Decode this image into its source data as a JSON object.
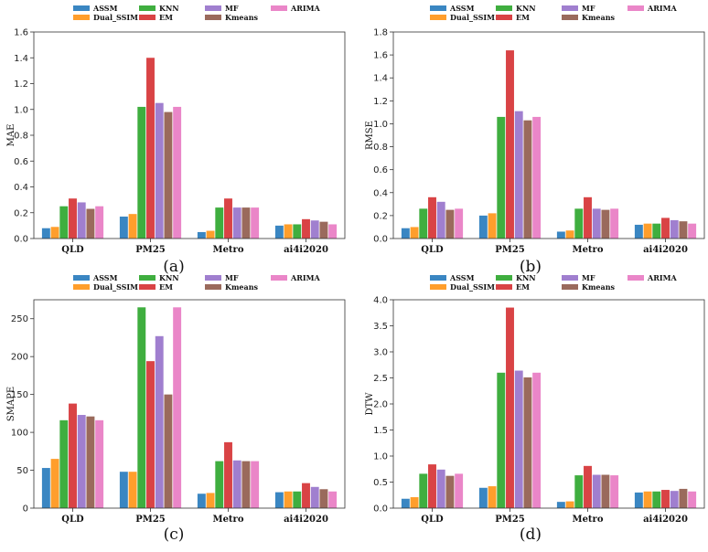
{
  "colors": {
    "ASSM": "#3a86c2",
    "Dual_SSIM": "#ff9e2c",
    "KNN": "#3fae3f",
    "EM": "#d94345",
    "MF": "#a07fcf",
    "Kmeans": "#9a6a5c",
    "ARIMA": "#ea86c8"
  },
  "legend_order": [
    "ASSM",
    "Dual_SSIM",
    "KNN",
    "EM",
    "MF",
    "Kmeans",
    "ARIMA"
  ],
  "chart_data": [
    {
      "type": "bar",
      "panel_label": "(a)",
      "title": "",
      "xlabel": "",
      "ylabel": "MAE",
      "ylim": [
        0,
        1.6
      ],
      "yticks": [
        "0.0",
        "0.2",
        "0.4",
        "0.6",
        "0.8",
        "1.0",
        "1.2",
        "1.4",
        "1.6"
      ],
      "categories": [
        "QLD",
        "PM25",
        "Metro",
        "ai4i2020"
      ],
      "legend": "top",
      "grid": false,
      "series": [
        {
          "name": "ASSM",
          "values": [
            0.08,
            0.17,
            0.05,
            0.1
          ]
        },
        {
          "name": "Dual_SSIM",
          "values": [
            0.09,
            0.19,
            0.06,
            0.11
          ]
        },
        {
          "name": "KNN",
          "values": [
            0.25,
            1.02,
            0.24,
            0.11
          ]
        },
        {
          "name": "EM",
          "values": [
            0.31,
            1.4,
            0.31,
            0.15
          ]
        },
        {
          "name": "MF",
          "values": [
            0.28,
            1.05,
            0.24,
            0.14
          ]
        },
        {
          "name": "Kmeans",
          "values": [
            0.23,
            0.98,
            0.24,
            0.13
          ]
        },
        {
          "name": "ARIMA",
          "values": [
            0.25,
            1.02,
            0.24,
            0.11
          ]
        }
      ]
    },
    {
      "type": "bar",
      "panel_label": "(b)",
      "title": "",
      "xlabel": "",
      "ylabel": "RMSE",
      "ylim": [
        0,
        1.8
      ],
      "yticks": [
        "0.0",
        "0.2",
        "0.4",
        "0.6",
        "0.8",
        "1.0",
        "1.2",
        "1.4",
        "1.6",
        "1.8"
      ],
      "categories": [
        "QLD",
        "PM25",
        "Metro",
        "ai4i2020"
      ],
      "legend": "top",
      "grid": false,
      "series": [
        {
          "name": "ASSM",
          "values": [
            0.09,
            0.2,
            0.06,
            0.12
          ]
        },
        {
          "name": "Dual_SSIM",
          "values": [
            0.1,
            0.22,
            0.07,
            0.13
          ]
        },
        {
          "name": "KNN",
          "values": [
            0.26,
            1.06,
            0.26,
            0.13
          ]
        },
        {
          "name": "EM",
          "values": [
            0.36,
            1.64,
            0.36,
            0.18
          ]
        },
        {
          "name": "MF",
          "values": [
            0.32,
            1.11,
            0.26,
            0.16
          ]
        },
        {
          "name": "Kmeans",
          "values": [
            0.25,
            1.03,
            0.25,
            0.15
          ]
        },
        {
          "name": "ARIMA",
          "values": [
            0.26,
            1.06,
            0.26,
            0.13
          ]
        }
      ]
    },
    {
      "type": "bar",
      "panel_label": "(c)",
      "title": "",
      "xlabel": "",
      "ylabel": "SMAPE",
      "ylim": [
        0,
        275
      ],
      "yticks": [
        "0",
        "50",
        "100",
        "150",
        "200",
        "250"
      ],
      "ytick_values": [
        0,
        50,
        100,
        150,
        200,
        250
      ],
      "categories": [
        "QLD",
        "PM25",
        "Metro",
        "ai4i2020"
      ],
      "legend": "top",
      "grid": false,
      "series": [
        {
          "name": "ASSM",
          "values": [
            53,
            48,
            19,
            21
          ]
        },
        {
          "name": "Dual_SSIM",
          "values": [
            65,
            48,
            20,
            22
          ]
        },
        {
          "name": "KNN",
          "values": [
            116,
            265,
            62,
            22
          ]
        },
        {
          "name": "EM",
          "values": [
            138,
            194,
            87,
            33
          ]
        },
        {
          "name": "MF",
          "values": [
            123,
            227,
            63,
            28
          ]
        },
        {
          "name": "Kmeans",
          "values": [
            121,
            150,
            62,
            25
          ]
        },
        {
          "name": "ARIMA",
          "values": [
            116,
            265,
            62,
            22
          ]
        }
      ]
    },
    {
      "type": "bar",
      "panel_label": "(d)",
      "title": "",
      "xlabel": "",
      "ylabel": "DTW",
      "ylim": [
        0,
        4.0
      ],
      "yticks": [
        "0.0",
        "0.5",
        "1.0",
        "1.5",
        "2.0",
        "2.5",
        "3.0",
        "3.5",
        "4.0"
      ],
      "categories": [
        "QLD",
        "PM25",
        "Metro",
        "ai4i2020"
      ],
      "legend": "top",
      "grid": false,
      "series": [
        {
          "name": "ASSM",
          "values": [
            0.18,
            0.39,
            0.12,
            0.3
          ]
        },
        {
          "name": "Dual_SSIM",
          "values": [
            0.21,
            0.42,
            0.13,
            0.32
          ]
        },
        {
          "name": "KNN",
          "values": [
            0.66,
            2.6,
            0.63,
            0.32
          ]
        },
        {
          "name": "EM",
          "values": [
            0.84,
            3.85,
            0.81,
            0.35
          ]
        },
        {
          "name": "MF",
          "values": [
            0.74,
            2.64,
            0.64,
            0.33
          ]
        },
        {
          "name": "Kmeans",
          "values": [
            0.62,
            2.51,
            0.64,
            0.37
          ]
        },
        {
          "name": "ARIMA",
          "values": [
            0.66,
            2.6,
            0.63,
            0.32
          ]
        }
      ]
    }
  ]
}
